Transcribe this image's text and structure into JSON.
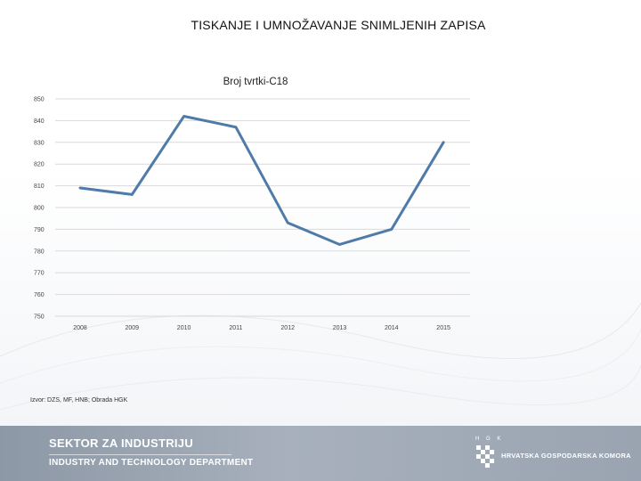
{
  "slide": {
    "title": "TISKANJE I UMNOŽAVANJE SNIMLJENIH ZAPISA",
    "source": "Izvor: DZS, MF, HNB; Obrada HGK"
  },
  "footer": {
    "line1": "SEKTOR ZA INDUSTRIJU",
    "line2": "INDUSTRY AND TECHNOLOGY DEPARTMENT",
    "org_small": "H G K",
    "org_name": "HRVATSKA GOSPODARSKA KOMORA"
  },
  "colors": {
    "series_line": "#4f7ba8",
    "gridline": "#d9d9d9",
    "footer_bg": "#9aa4b1"
  },
  "chart_data": {
    "type": "line",
    "title": "Broj tvrtki-C18",
    "xlabel": "",
    "ylabel": "",
    "categories": [
      "2008",
      "2009",
      "2010",
      "2011",
      "2012",
      "2013",
      "2014",
      "2015"
    ],
    "series": [
      {
        "values": [
          809,
          806,
          842,
          837,
          793,
          783,
          790,
          830
        ]
      }
    ],
    "ylim": [
      750,
      850
    ],
    "yticks": [
      750,
      760,
      770,
      780,
      790,
      800,
      810,
      820,
      830,
      840,
      850
    ],
    "grid": true,
    "legend": "none"
  }
}
